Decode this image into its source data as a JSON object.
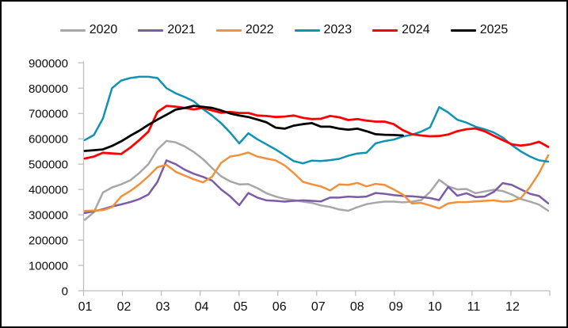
{
  "chart_data": {
    "type": "line",
    "title": "",
    "xlabel": "",
    "ylabel": "",
    "x_axis": {
      "tick_labels": [
        "01",
        "02",
        "03",
        "04",
        "05",
        "06",
        "07",
        "08",
        "09",
        "10",
        "11",
        "12"
      ],
      "note": "monthly ticks, weekly data points (52 per year; 2025 partial through ~week 36)"
    },
    "y_axis": {
      "min": 0,
      "max": 900000,
      "step": 100000,
      "tick_labels": [
        "0",
        "100000",
        "200000",
        "300000",
        "400000",
        "500000",
        "600000",
        "700000",
        "800000",
        "900000"
      ]
    },
    "legend_position": "top",
    "grid": false,
    "axis_color": "#bfbfbf",
    "label_color": "#0d0d0d",
    "series": [
      {
        "name": "2020",
        "color": "#a7a7a7",
        "values": [
          280000,
          310000,
          388000,
          408000,
          420000,
          436000,
          465000,
          500000,
          558000,
          592000,
          586000,
          570000,
          548000,
          520000,
          485000,
          452000,
          432000,
          420000,
          421000,
          405000,
          385000,
          372000,
          363000,
          358000,
          352000,
          347000,
          337000,
          331000,
          321000,
          316000,
          330000,
          342000,
          348000,
          352000,
          352000,
          349000,
          352000,
          358000,
          390000,
          438000,
          412000,
          400000,
          402000,
          385000,
          392000,
          399000,
          394000,
          380000,
          362000,
          352000,
          340000,
          316000
        ]
      },
      {
        "name": "2021",
        "color": "#7c5ba7",
        "values": [
          307000,
          314000,
          322000,
          333000,
          341000,
          350000,
          362000,
          380000,
          430000,
          515000,
          500000,
          478000,
          462000,
          450000,
          435000,
          400000,
          373000,
          338000,
          386000,
          368000,
          357000,
          355000,
          352000,
          355000,
          357000,
          355000,
          353000,
          368000,
          368000,
          372000,
          370000,
          372000,
          386000,
          383000,
          378000,
          374000,
          373000,
          370000,
          366000,
          358000,
          410000,
          375000,
          385000,
          370000,
          372000,
          390000,
          425000,
          418000,
          400000,
          383000,
          374000,
          345000
        ]
      },
      {
        "name": "2022",
        "color": "#f0913c",
        "values": [
          315000,
          317000,
          318000,
          330000,
          372000,
          394000,
          420000,
          452000,
          488000,
          497000,
          470000,
          455000,
          440000,
          428000,
          450000,
          505000,
          530000,
          536000,
          546000,
          530000,
          522000,
          515000,
          495000,
          465000,
          430000,
          420000,
          412000,
          396000,
          420000,
          418000,
          426000,
          412000,
          422000,
          418000,
          400000,
          380000,
          345000,
          347000,
          337000,
          325000,
          345000,
          350000,
          350000,
          353000,
          355000,
          357000,
          352000,
          354000,
          366000,
          410000,
          465000,
          535000
        ]
      },
      {
        "name": "2023",
        "color": "#0f93b5",
        "values": [
          595000,
          615000,
          680000,
          800000,
          830000,
          840000,
          845000,
          845000,
          840000,
          800000,
          780000,
          765000,
          748000,
          718000,
          692000,
          662000,
          625000,
          582000,
          622000,
          598000,
          578000,
          558000,
          535000,
          512000,
          503000,
          514000,
          512000,
          516000,
          521000,
          533000,
          542000,
          545000,
          582000,
          591000,
          597000,
          609000,
          616000,
          628000,
          645000,
          725000,
          704000,
          675000,
          664000,
          648000,
          638000,
          625000,
          605000,
          575000,
          550000,
          530000,
          515000,
          510000
        ]
      },
      {
        "name": "2024",
        "color": "#fe0000",
        "values": [
          522000,
          530000,
          545000,
          542000,
          540000,
          565000,
          595000,
          628000,
          706000,
          730000,
          727000,
          722000,
          716000,
          722000,
          712000,
          703000,
          706000,
          702000,
          702000,
          692000,
          690000,
          686000,
          688000,
          692000,
          683000,
          678000,
          679000,
          690000,
          685000,
          674000,
          678000,
          672000,
          668000,
          668000,
          658000,
          634000,
          618000,
          613000,
          610000,
          611000,
          617000,
          630000,
          638000,
          641000,
          630000,
          612000,
          595000,
          578000,
          573000,
          578000,
          588000,
          568000
        ]
      },
      {
        "name": "2025",
        "color": "#000000",
        "values": [
          552000,
          555000,
          558000,
          572000,
          590000,
          612000,
          632000,
          655000,
          676000,
          695000,
          715000,
          722000,
          730000,
          726000,
          722000,
          712000,
          700000,
          692000,
          686000,
          676000,
          665000,
          644000,
          640000,
          652000,
          658000,
          662000,
          648000,
          648000,
          640000,
          636000,
          640000,
          630000,
          618000,
          616000,
          615000,
          613000
        ]
      }
    ]
  }
}
